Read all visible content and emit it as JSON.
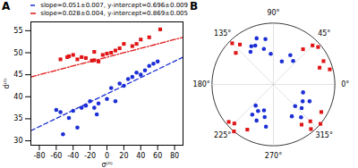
{
  "chart_data": [
    {
      "type": "scatter",
      "title": "A",
      "xlabel": "σ⁽⁰⁾",
      "ylabel": "d⁽⁰⁾",
      "xlim": [
        -90,
        90
      ],
      "ylim": [
        29,
        57
      ],
      "xticks": [
        -80,
        -60,
        -40,
        -20,
        0,
        20,
        40,
        60,
        80
      ],
      "yticks": [
        30,
        35,
        40,
        45,
        50,
        55
      ],
      "legend": "top",
      "series": [
        {
          "type": "scatter",
          "color": "#e01515",
          "marker": "square",
          "x": [
            -55,
            -47,
            -45,
            -40,
            -35,
            -30,
            -25,
            -18,
            -15,
            -15,
            -10,
            -5,
            0,
            5,
            10,
            15,
            20,
            30,
            35,
            40,
            50,
            63
          ],
          "values": [
            48.5,
            49,
            49.2,
            49.5,
            48.5,
            49,
            48.8,
            48.2,
            48.3,
            50.2,
            48,
            49.5,
            49.8,
            50,
            50.5,
            51,
            52,
            51.5,
            52,
            53,
            53.5,
            55.3
          ]
        },
        {
          "type": "scatter",
          "color": "#1c2fd6",
          "marker": "circle",
          "x": [
            -60,
            -55,
            -52,
            -45,
            -40,
            -35,
            -30,
            -25,
            -20,
            -15,
            -12,
            -10,
            0,
            5,
            10,
            15,
            20,
            25,
            30,
            35,
            40,
            45,
            50,
            55,
            60
          ],
          "values": [
            37,
            36.5,
            31.5,
            35.2,
            36.8,
            33,
            37.5,
            38,
            39,
            37.5,
            36,
            38.5,
            39.5,
            42,
            39,
            43,
            42.5,
            44,
            44.5,
            45.5,
            45,
            46,
            47,
            47.5,
            48
          ]
        },
        {
          "type": "line",
          "name": "slope=0.051±0.007, y-intercept=0.696±0.009",
          "color": "#1c2fd6",
          "line_style": "dashed",
          "x": [
            -90,
            90
          ],
          "values": [
            32.3,
            49
          ]
        },
        {
          "type": "line",
          "name": "slope=0.028±0.004, y-intercept=0.869±0.005",
          "color": "#e01515",
          "line_style": "dashdot",
          "x": [
            -90,
            90
          ],
          "values": [
            44.5,
            53.5
          ]
        }
      ]
    },
    {
      "type": "polar_scatter",
      "title": "B",
      "grid": true,
      "ylim": [
        0,
        1
      ],
      "xticks": [
        {
          "value": 0,
          "label": "0°"
        },
        {
          "value": 45,
          "label": "45°"
        },
        {
          "value": 90,
          "label": "90°"
        },
        {
          "value": 135,
          "label": "135°"
        },
        {
          "value": 180,
          "label": "180°"
        },
        {
          "value": 225,
          "label": "225°"
        },
        {
          "value": 270,
          "label": "270°"
        },
        {
          "value": 315,
          "label": "315°"
        }
      ],
      "series": [
        {
          "color": "#1c2fd6",
          "marker": "circle",
          "theta": [
            100,
            110,
            115,
            120,
            125,
            95,
            105,
            60,
            50,
            70,
            235,
            240,
            245,
            250,
            255,
            260,
            230,
            315,
            320,
            330,
            335,
            345,
            310,
            300
          ],
          "r": [
            0.75,
            0.8,
            0.7,
            0.72,
            0.65,
            0.5,
            0.6,
            0.55,
            0.5,
            0.4,
            0.6,
            0.5,
            0.65,
            0.45,
            0.55,
            0.7,
            0.45,
            0.5,
            0.6,
            0.55,
            0.65,
            0.5,
            0.7,
            0.6
          ]
        },
        {
          "color": "#e01515",
          "marker": "square",
          "theta": [
            135,
            130,
            45,
            40,
            25,
            20,
            15,
            50,
            225,
            220,
            230,
            240,
            310,
            315,
            320,
            330,
            305,
            140
          ],
          "r": [
            0.95,
            0.85,
            0.9,
            0.95,
            0.9,
            0.8,
            0.95,
            0.75,
            0.9,
            0.95,
            1.0,
            0.85,
            0.95,
            0.85,
            1.0,
            0.9,
            0.8,
            0.8
          ]
        }
      ]
    }
  ]
}
